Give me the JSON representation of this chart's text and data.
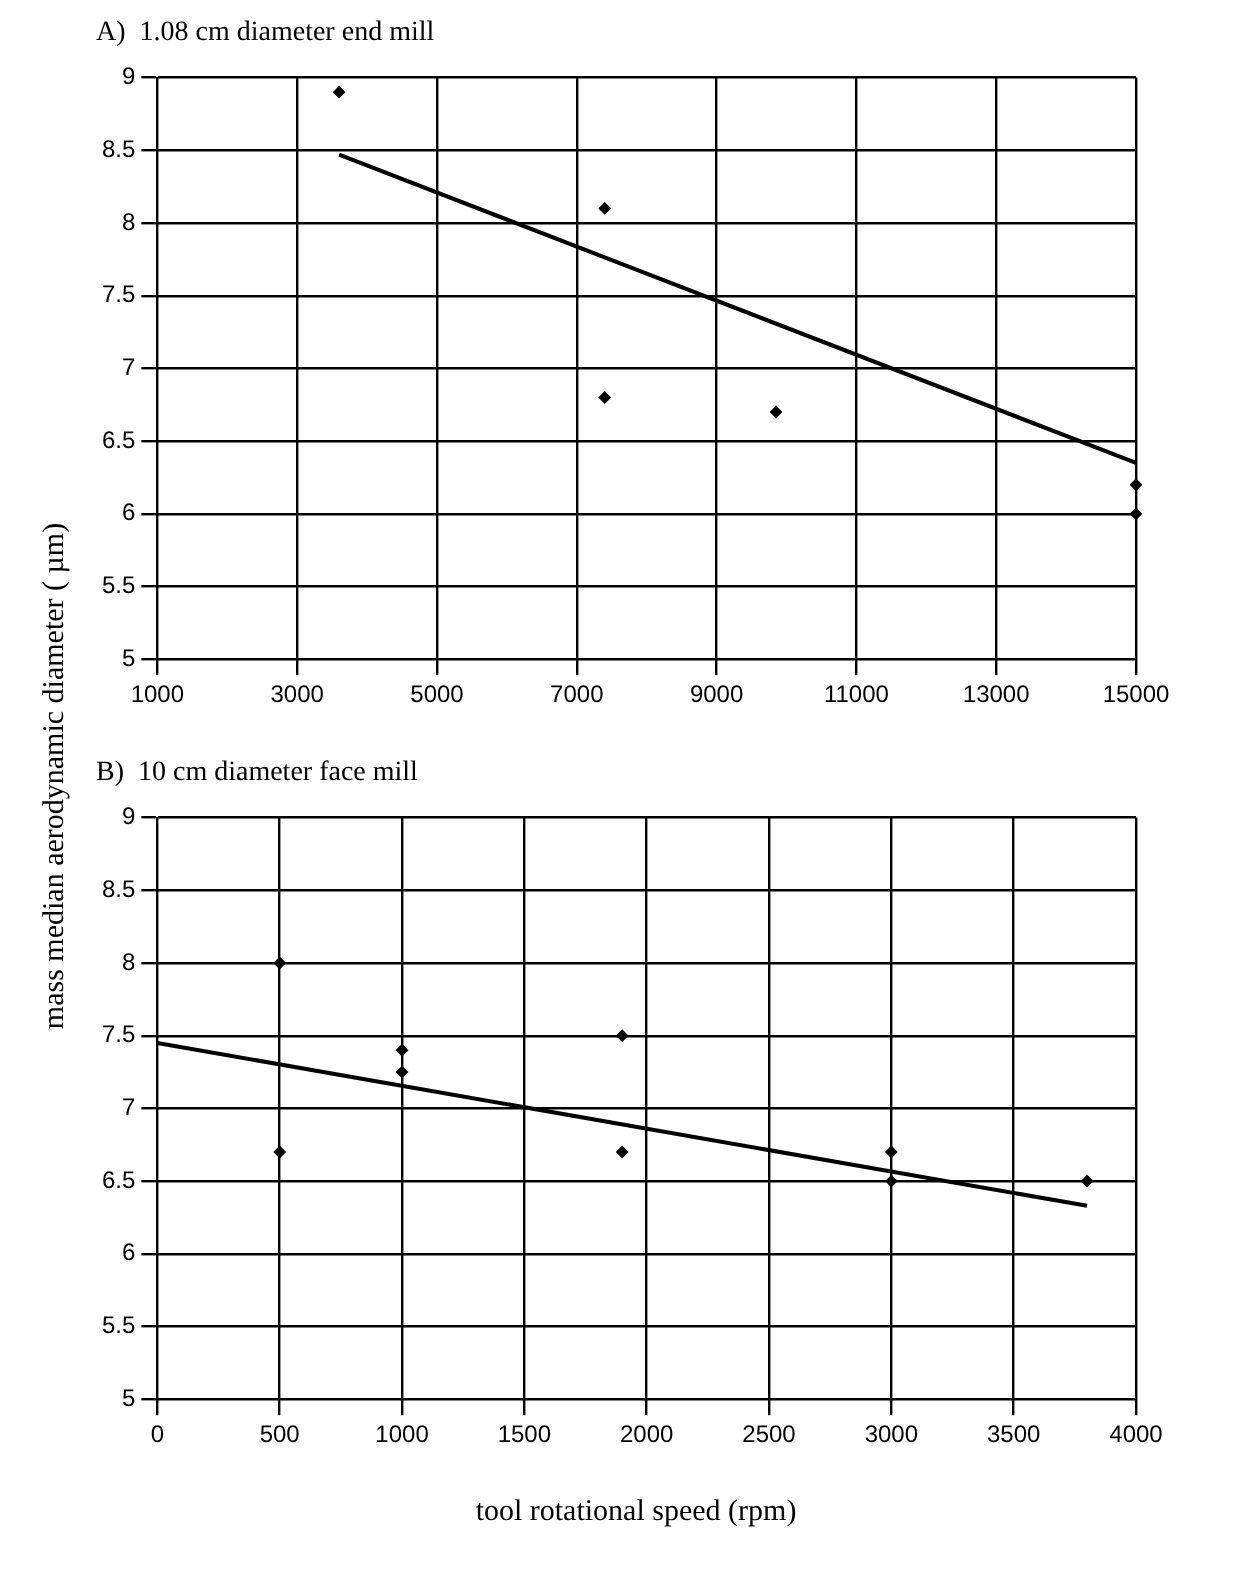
{
  "chart_data": [
    {
      "type": "scatter",
      "title": "A)  1.08 cm diameter end mill",
      "ylabel": "mass median aerodynamic diameter ( µm)",
      "xlim": [
        1000,
        15000
      ],
      "xticks": [
        1000,
        3000,
        5000,
        7000,
        9000,
        11000,
        13000,
        15000
      ],
      "ylim": [
        5,
        9
      ],
      "yticks": [
        5,
        5.5,
        6,
        6.5,
        7,
        7.5,
        8,
        8.5,
        9
      ],
      "grid": true,
      "legend": false,
      "series": [
        {
          "type": "scatter",
          "marker": "diamond",
          "color": "#000000",
          "x": [
            3600,
            7400,
            7400,
            9850,
            15000,
            15000
          ],
          "values": [
            8.9,
            8.1,
            6.8,
            6.7,
            6.2,
            6.0
          ]
        },
        {
          "type": "line",
          "marker": "none",
          "line_style": "solid",
          "color": "#000000",
          "x": [
            3600,
            15000
          ],
          "values": [
            8.47,
            6.35
          ]
        }
      ]
    },
    {
      "type": "scatter",
      "title": "B)  10 cm diameter face mill",
      "xlabel": "tool rotational speed (rpm)",
      "xlim": [
        0,
        4000
      ],
      "xticks": [
        0,
        500,
        1000,
        1500,
        2000,
        2500,
        3000,
        3500,
        4000
      ],
      "ylim": [
        5,
        9
      ],
      "yticks": [
        5,
        5.5,
        6,
        6.5,
        7,
        7.5,
        8,
        8.5,
        9
      ],
      "grid": true,
      "legend": false,
      "series": [
        {
          "type": "scatter",
          "marker": "diamond",
          "color": "#000000",
          "x": [
            500,
            500,
            1000,
            1000,
            1900,
            1900,
            3000,
            3000,
            3800
          ],
          "values": [
            8.0,
            6.7,
            7.4,
            7.25,
            7.5,
            6.7,
            6.7,
            6.5,
            6.5
          ]
        },
        {
          "type": "line",
          "marker": "none",
          "line_style": "solid",
          "color": "#000000",
          "x": [
            0,
            3800
          ],
          "values": [
            7.45,
            6.33
          ]
        }
      ]
    }
  ]
}
